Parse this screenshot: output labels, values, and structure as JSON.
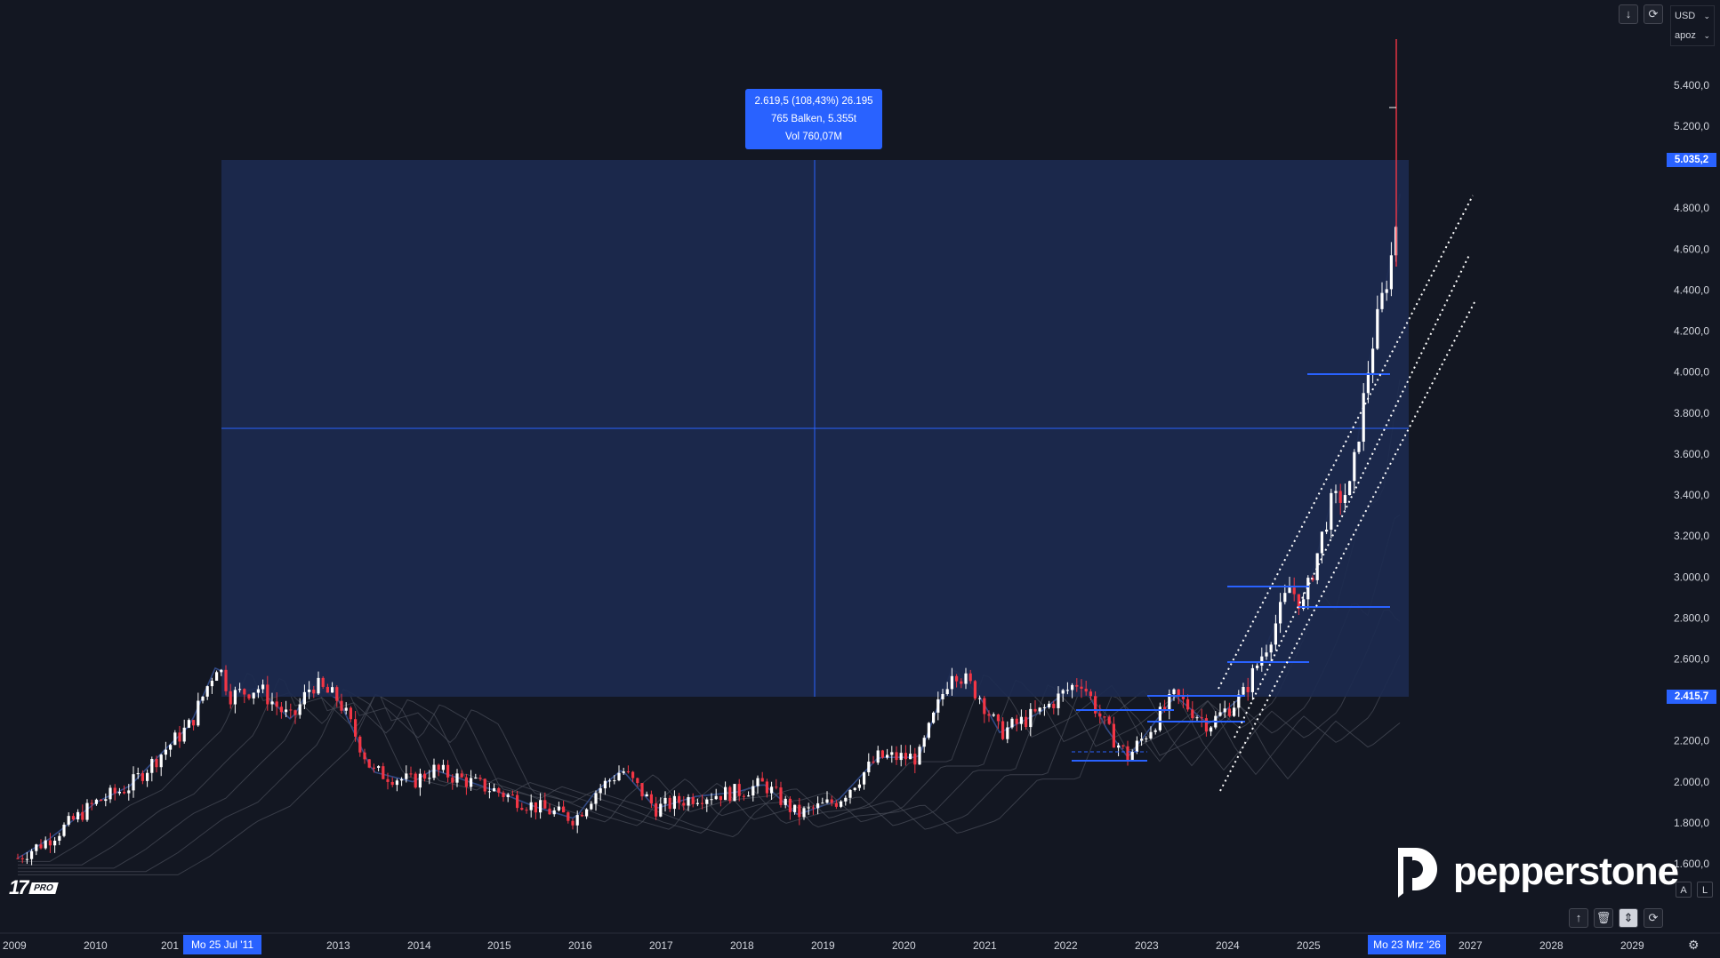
{
  "toolbar": {
    "currency_label": "USD",
    "unit_label": "apoz",
    "download_icon": "arrow-down-icon",
    "refresh_icon": "refresh-icon"
  },
  "measure_tooltip": {
    "line1": "2.619,5 (108,43%) 26.195",
    "line2": "765 Balken, 5.355t",
    "line3": "Vol 760,07M"
  },
  "price_tags": {
    "upper": "5.035,2",
    "lower": "2.415,7"
  },
  "time_tags": {
    "start": "Mo 25 Jul '11",
    "end": "Mo 23 Mrz '26"
  },
  "brand": {
    "logo_text": "pepperstone",
    "platform": "PRO"
  },
  "scale_buttons": {
    "auto": "A",
    "log": "L"
  },
  "bottom_controls": [
    "arrow-up-icon",
    "trash-icon",
    "collapse-icon",
    "refresh-icon"
  ],
  "colors": {
    "background": "#131722",
    "accent": "#2962ff",
    "measure_fill": "#1c2a4f",
    "up_candle": "#ffffff",
    "down_candle": "#f23645"
  },
  "chart_data": {
    "type": "line",
    "title": "",
    "instrument_unit": "USD / apoz",
    "y_ticks": [
      "5.400,0",
      "5.200,0",
      "4.800,0",
      "4.600,0",
      "4.400,0",
      "4.200,0",
      "4.000,0",
      "3.800,0",
      "3.600,0",
      "3.400,0",
      "3.200,0",
      "3.000,0",
      "2.800,0",
      "2.600,0",
      "2.200,0",
      "2.000,0",
      "1.800,0",
      "1.600,0"
    ],
    "x_ticks": [
      "2009",
      "2010",
      "201",
      "2",
      "2013",
      "2014",
      "2015",
      "2016",
      "2017",
      "2018",
      "2019",
      "2020",
      "2021",
      "2022",
      "2023",
      "2024",
      "2025",
      "2027",
      "2028",
      "2029"
    ],
    "ylim": [
      1500,
      5600
    ],
    "series": [
      {
        "values": [
          {
            "x": "2009-01",
            "y": 1620
          },
          {
            "x": "2009-06",
            "y": 1720
          },
          {
            "x": "2010-01",
            "y": 1900
          },
          {
            "x": "2010-06",
            "y": 1980
          },
          {
            "x": "2010-11",
            "y": 2150
          },
          {
            "x": "2011-03",
            "y": 2280
          },
          {
            "x": "2011-07",
            "y": 2580
          },
          {
            "x": "2011-09",
            "y": 2420
          },
          {
            "x": "2012-01",
            "y": 2460
          },
          {
            "x": "2012-06",
            "y": 2300
          },
          {
            "x": "2012-09",
            "y": 2480
          },
          {
            "x": "2013-01",
            "y": 2400
          },
          {
            "x": "2013-06",
            "y": 2050
          },
          {
            "x": "2013-12",
            "y": 2000
          },
          {
            "x": "2014-03",
            "y": 2060
          },
          {
            "x": "2014-12",
            "y": 1960
          },
          {
            "x": "2015-06",
            "y": 1880
          },
          {
            "x": "2015-12",
            "y": 1820
          },
          {
            "x": "2016-03",
            "y": 1950
          },
          {
            "x": "2016-07",
            "y": 2060
          },
          {
            "x": "2016-12",
            "y": 1870
          },
          {
            "x": "2017-06",
            "y": 1930
          },
          {
            "x": "2017-12",
            "y": 1950
          },
          {
            "x": "2018-04",
            "y": 1990
          },
          {
            "x": "2018-09",
            "y": 1840
          },
          {
            "x": "2019-03",
            "y": 1910
          },
          {
            "x": "2019-09",
            "y": 2120
          },
          {
            "x": "2020-03",
            "y": 2120
          },
          {
            "x": "2020-08",
            "y": 2560
          },
          {
            "x": "2020-12",
            "y": 2420
          },
          {
            "x": "2021-03",
            "y": 2240
          },
          {
            "x": "2021-09",
            "y": 2340
          },
          {
            "x": "2022-03",
            "y": 2500
          },
          {
            "x": "2022-07",
            "y": 2250
          },
          {
            "x": "2022-10",
            "y": 2120
          },
          {
            "x": "2023-05",
            "y": 2420
          },
          {
            "x": "2023-10",
            "y": 2280
          },
          {
            "x": "2024-03",
            "y": 2420
          },
          {
            "x": "2024-07",
            "y": 2700
          },
          {
            "x": "2024-10",
            "y": 2950
          },
          {
            "x": "2024-12",
            "y": 2860
          },
          {
            "x": "2025-04",
            "y": 3350
          },
          {
            "x": "2025-07",
            "y": 3430
          },
          {
            "x": "2025-10",
            "y": 4100
          },
          {
            "x": "2026-01",
            "y": 4550
          },
          {
            "x": "2026-03",
            "y": 5035
          }
        ]
      }
    ],
    "measure_range": {
      "from": 2415.7,
      "to": 5035.2,
      "change": "2.619,5",
      "percent": "108,43%"
    },
    "grid": false,
    "log_scale": false
  }
}
